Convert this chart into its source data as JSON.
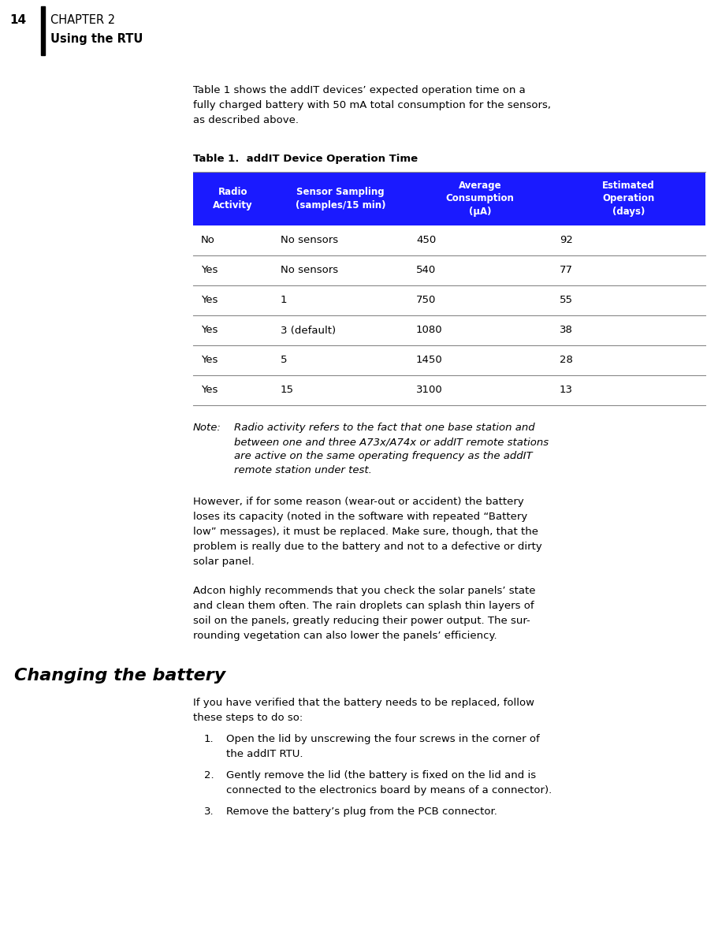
{
  "page_number": "14",
  "chapter": "CHAPTER 2",
  "section": "Using the RTU",
  "bg_color": "#ffffff",
  "table_header_bg": "#1a1aff",
  "table_header_text_color": "#ffffff",
  "table_line_color": "#aaaaaa",
  "table_caption": "Table 1.  addIT Device Operation Time",
  "table_headers": [
    "Radio\nActivity",
    "Sensor Sampling\n(samples/15 min)",
    "Average\nConsumption\n(µA)",
    "Estimated\nOperation\n(days)"
  ],
  "table_rows": [
    [
      "No",
      "No sensors",
      "450",
      "92"
    ],
    [
      "Yes",
      "No sensors",
      "540",
      "77"
    ],
    [
      "Yes",
      "1",
      "750",
      "55"
    ],
    [
      "Yes",
      "3 (default)",
      "1080",
      "38"
    ],
    [
      "Yes",
      "5",
      "1450",
      "28"
    ],
    [
      "Yes",
      "15",
      "3100",
      "13"
    ]
  ],
  "intro_text": "Table 1 shows the addIT devices’ expected operation time on a fully charged battery with 50 mA total consumption for the sensors, as described above.",
  "note_body": "Radio activity refers to the fact that one base station and\n        between one and three A73x/A74x or addIT remote stations\n        are active on the same operating frequency as the addIT\n        remote station under test.",
  "para1": "However, if for some reason (wear-out or accident) the battery loses its capacity (noted in the software with repeated “Battery low” messages), it must be replaced. Make sure, though, that the problem is really due to the battery and not to a defective or dirty solar panel.",
  "para2": "Adcon highly recommends that you check the solar panels’ state and clean them often. The rain droplets can splash thin layers of soil on the panels, greatly reducing their power output. The sur-rounding vegetation can also lower the panels’ efficiency.",
  "section2_title": "Changing the battery",
  "section2_intro": "If you have verified that the battery needs to be replaced, follow these steps to do so:",
  "list_items": [
    "Open the lid by unscrewing the four screws in the corner of\nthe addIT RTU.",
    "Gently remove the lid (the battery is fixed on the lid and is\nconnected to the electronics board by means of a connector).",
    "Remove the battery’s plug from the PCB connector."
  ]
}
